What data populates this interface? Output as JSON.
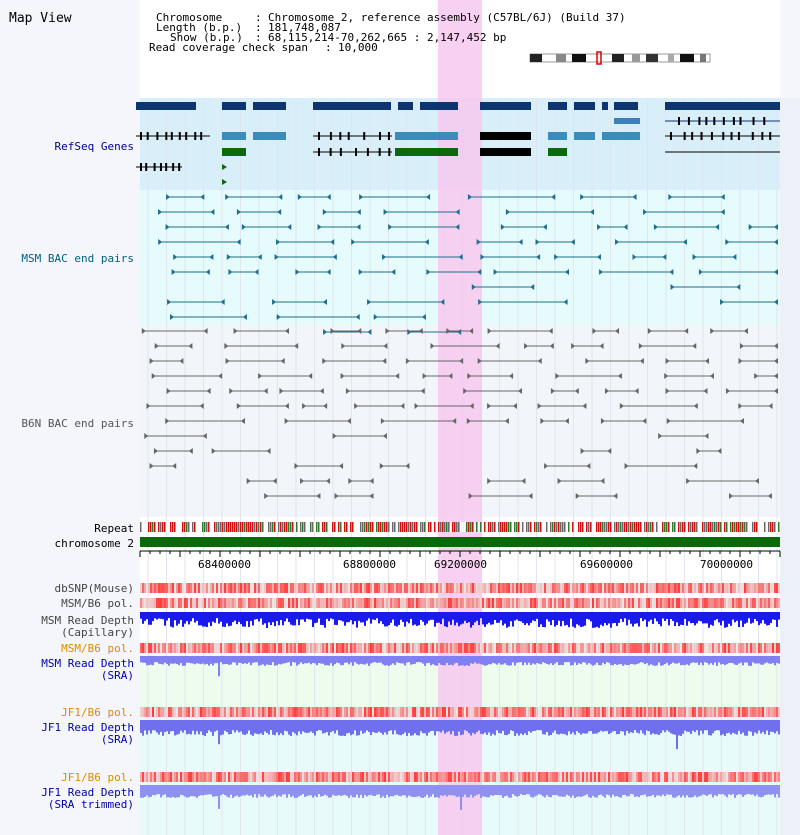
{
  "title": "Map View",
  "info": {
    "chromosome_label": "Chromosome",
    "chromosome_value": "Chromosome 2, reference assembly (C57BL/6J) (Build 37)",
    "length_label": "Length (b.p.)",
    "length_value": "181,748,087",
    "show_label": "Show (b.p.)",
    "show_value": "68,115,214-70,262,665 : 2,147,452 bp",
    "coverage_label": "Read coverage check span",
    "coverage_value": "10,000"
  },
  "tracks": {
    "refseq": "RefSeq Genes",
    "msm_bac": "MSM BAC end pairs",
    "b6n_bac": "B6N BAC end pairs",
    "repeat": "Repeat",
    "chromosome": "chromosome 2",
    "dbsnp": "dbSNP(Mouse)",
    "msm_pol1": "MSM/B6 pol.",
    "msm_depth_cap_1": "MSM Read Depth",
    "msm_depth_cap_2": "(Capillary)",
    "msm_pol2": "MSM/B6 pol.",
    "msm_depth_sra_1": "MSM Read Depth",
    "msm_depth_sra_2": "(SRA)",
    "jf1_pol1": "JF1/B6 pol.",
    "jf1_depth_sra_1": "JF1 Read Depth",
    "jf1_depth_sra_2": "(SRA)",
    "jf1_pol2": "JF1/B6 pol.",
    "jf1_depth_trim_1": "JF1 Read Depth",
    "jf1_depth_trim_2": "(SRA trimmed)"
  },
  "ruler": {
    "ticks": [
      "68400000",
      "68800000",
      "69200000",
      "69600000",
      "70000000"
    ]
  },
  "colors": {
    "refseq_label": "#00008b",
    "msm_label": "#006080",
    "b6n_label": "#555555",
    "pol_orange": "#e08a00",
    "depth_blue": "#0000b0",
    "highlight": "#f7c8ef"
  }
}
